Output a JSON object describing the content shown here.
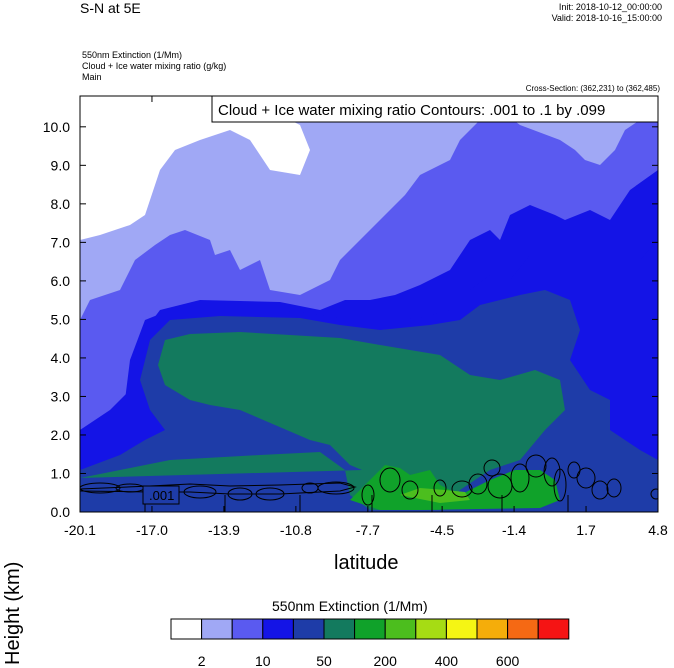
{
  "header": {
    "main_title": "S-N at 5E",
    "init": "Init: 2018-10-12_00:00:00",
    "valid": "Valid: 2018-10-16_15:00:00",
    "field1": "550nm Extinction   (1/Mm)",
    "field2": "Cloud + Ice water mixing ratio   (g/kg)",
    "field3": "Main",
    "cross_section": "Cross-Section: (362,231) to (362,485)"
  },
  "chart_data": {
    "type": "heatmap",
    "title": "",
    "xlabel": "latitude",
    "ylabel": "Height (km)",
    "x_ticks": [
      "-20.1",
      "-17.0",
      "-13.9",
      "-10.8",
      "-7.7",
      "-4.5",
      "-1.4",
      "1.7",
      "4.8"
    ],
    "xlim": [
      -20.1,
      4.8
    ],
    "y_ticks": [
      "0.0",
      "1.0",
      "2.0",
      "3.0",
      "4.0",
      "5.0",
      "6.0",
      "7.0",
      "8.0",
      "9.0",
      "10.0"
    ],
    "ylim": [
      0,
      10.8
    ],
    "contour_annotation": "Cloud + Ice water mixing ratio Contours: .001 to .1 by .099",
    "contour_label": ".001",
    "colorbar": {
      "title": "550nm Extinction  (1/Mm)",
      "labels": [
        "2",
        "10",
        "50",
        "200",
        "400",
        "600"
      ],
      "colors": [
        "#ffffff",
        "#a0a8f5",
        "#5a5af0",
        "#1414e6",
        "#1e3ca8",
        "#137a5e",
        "#10a22a",
        "#4cbe1e",
        "#a6dc14",
        "#f5f514",
        "#f5ad0a",
        "#f56914",
        "#f51414"
      ]
    }
  }
}
